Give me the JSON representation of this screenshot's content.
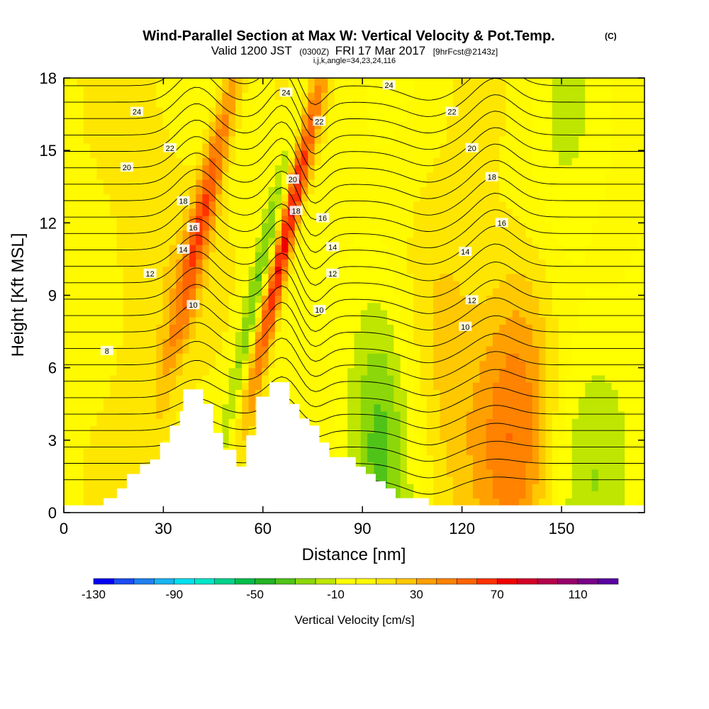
{
  "title": "Wind-Parallel Section at Max W: Vertical Velocity & Pot.Temp.",
  "title_mark": "(C)",
  "subtitle": {
    "valid": "Valid 1200 JST",
    "utc": "(0300Z)",
    "date": "FRI 17 Mar 2017",
    "fcst": "[9hrFcst@2143z]"
  },
  "subtitle2": "i,j,k,angle=34,23,24,116",
  "chart_data": {
    "type": "heatmap",
    "xlabel": "Distance [nm]",
    "ylabel": "Height [Kft MSL]",
    "xlim": [
      0,
      175
    ],
    "ylim": [
      0,
      18
    ],
    "x_ticks": [
      "0",
      "30",
      "60",
      "90",
      "120",
      "150"
    ],
    "y_ticks": [
      "0",
      "3",
      "6",
      "9",
      "12",
      "15",
      "18"
    ],
    "colorbar": {
      "label": "Vertical Velocity [cm/s]",
      "range": [
        -130,
        130
      ],
      "step": 10,
      "tick_labels": [
        "-130",
        "-90",
        "-50",
        "-10",
        "30",
        "70",
        "110"
      ],
      "colors": [
        "#0000f0",
        "#1c4cf0",
        "#2080f0",
        "#18b4f0",
        "#00e0f0",
        "#00e6c8",
        "#00d28c",
        "#00be4b",
        "#24b224",
        "#50c318",
        "#8cd70a",
        "#bee600",
        "#ffff00",
        "#fffa00",
        "#ffe600",
        "#ffc800",
        "#ffa000",
        "#ff8200",
        "#ff6400",
        "#ff3200",
        "#f00000",
        "#d20028",
        "#b4004b",
        "#960069",
        "#780087",
        "#5a00a0"
      ]
    },
    "terrain": [
      {
        "x": 0,
        "h": 0.3
      },
      {
        "x": 12,
        "h": 0.3
      },
      {
        "x": 12,
        "h": 0.6
      },
      {
        "x": 16,
        "h": 1.0
      },
      {
        "x": 19,
        "h": 1.6
      },
      {
        "x": 23,
        "h": 2.0
      },
      {
        "x": 26,
        "h": 2.2
      },
      {
        "x": 29,
        "h": 2.9
      },
      {
        "x": 32,
        "h": 3.6
      },
      {
        "x": 35,
        "h": 4.2
      },
      {
        "x": 36,
        "h": 5.1
      },
      {
        "x": 42,
        "h": 5.1
      },
      {
        "x": 42,
        "h": 4.5
      },
      {
        "x": 45,
        "h": 3.3
      },
      {
        "x": 48,
        "h": 2.6
      },
      {
        "x": 52,
        "h": 1.9
      },
      {
        "x": 55,
        "h": 3.2
      },
      {
        "x": 58,
        "h": 4.8
      },
      {
        "x": 62,
        "h": 5.4
      },
      {
        "x": 68,
        "h": 5.4
      },
      {
        "x": 68,
        "h": 4.5
      },
      {
        "x": 71,
        "h": 3.9
      },
      {
        "x": 74,
        "h": 3.6
      },
      {
        "x": 77,
        "h": 2.9
      },
      {
        "x": 80,
        "h": 2.3
      },
      {
        "x": 88,
        "h": 2.3
      },
      {
        "x": 88,
        "h": 1.9
      },
      {
        "x": 91,
        "h": 1.6
      },
      {
        "x": 94,
        "h": 1.3
      },
      {
        "x": 97,
        "h": 1.0
      },
      {
        "x": 100,
        "h": 0.6
      },
      {
        "x": 110,
        "h": 0.6
      },
      {
        "x": 110,
        "h": 0.3
      },
      {
        "x": 175,
        "h": 0.3
      }
    ],
    "w_features": [
      {
        "x": 43,
        "h": 13.0,
        "w": 0.9,
        "amp": 50
      },
      {
        "x": 66,
        "h": 11.0,
        "w": 0.8,
        "amp": 80
      },
      {
        "x": 59,
        "h": 9.5,
        "w": 0.9,
        "amp": -40
      },
      {
        "x": 95,
        "h": 4.0,
        "w": 2.5,
        "amp": -35
      },
      {
        "x": 137,
        "h": 4.0,
        "w": 3.0,
        "amp": 45
      },
      {
        "x": 117,
        "h": 7.0,
        "w": 3.0,
        "amp": 20
      },
      {
        "x": 160,
        "h": 2.5,
        "w": 4.0,
        "amp": -20
      },
      {
        "x": 24,
        "h": 10.0,
        "w": 4.0,
        "amp": 15
      },
      {
        "x": 150,
        "h": 14.0,
        "w": 3.0,
        "amp": -15
      }
    ],
    "theta_contours": {
      "units_note": "",
      "levels": [
        2,
        3,
        4,
        5,
        6,
        7,
        8,
        9,
        10,
        11,
        12,
        13,
        14,
        15,
        16,
        17,
        18,
        19,
        20,
        21,
        22,
        23,
        24,
        25,
        26
      ],
      "labels": [
        {
          "text": "8",
          "x": 13,
          "y": 6.7
        },
        {
          "text": "10",
          "x": 39,
          "y": 8.6
        },
        {
          "text": "12",
          "x": 26,
          "y": 9.9
        },
        {
          "text": "14",
          "x": 36,
          "y": 10.9
        },
        {
          "text": "16",
          "x": 39,
          "y": 11.8
        },
        {
          "text": "18",
          "x": 36,
          "y": 12.9
        },
        {
          "text": "20",
          "x": 19,
          "y": 14.3
        },
        {
          "text": "22",
          "x": 32,
          "y": 15.1
        },
        {
          "text": "24",
          "x": 22,
          "y": 16.6
        },
        {
          "text": "24",
          "x": 67,
          "y": 17.4
        },
        {
          "text": "22",
          "x": 77,
          "y": 16.2
        },
        {
          "text": "20",
          "x": 69,
          "y": 13.8
        },
        {
          "text": "18",
          "x": 70,
          "y": 12.5
        },
        {
          "text": "16",
          "x": 78,
          "y": 12.2
        },
        {
          "text": "14",
          "x": 81,
          "y": 11.0
        },
        {
          "text": "12",
          "x": 81,
          "y": 9.9
        },
        {
          "text": "10",
          "x": 77,
          "y": 8.4
        },
        {
          "text": "24",
          "x": 98,
          "y": 17.7
        },
        {
          "text": "22",
          "x": 117,
          "y": 16.6
        },
        {
          "text": "20",
          "x": 123,
          "y": 15.1
        },
        {
          "text": "18",
          "x": 129,
          "y": 13.9
        },
        {
          "text": "16",
          "x": 132,
          "y": 12.0
        },
        {
          "text": "14",
          "x": 121,
          "y": 10.8
        },
        {
          "text": "12",
          "x": 123,
          "y": 8.8
        },
        {
          "text": "10",
          "x": 121,
          "y": 7.7
        }
      ]
    }
  }
}
